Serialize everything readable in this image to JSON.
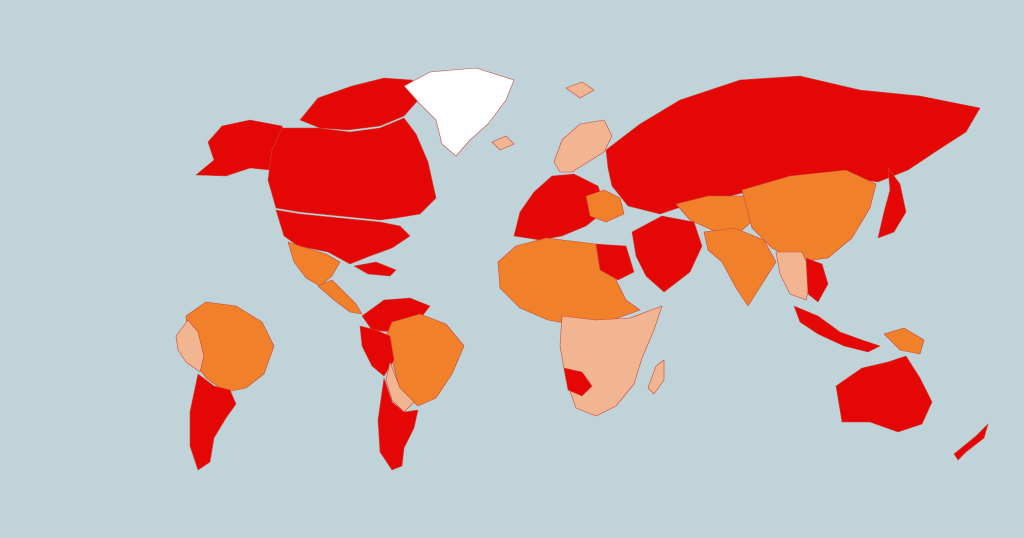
{
  "map": {
    "title": "",
    "colors": {
      "ocean": "#bfd3d8",
      "high": "#e50606",
      "medium": "#f0812a",
      "low": "#f2b592",
      "none": "#ffffff"
    },
    "regions": [
      {
        "name": "alaska",
        "level": "high"
      },
      {
        "name": "canada",
        "level": "high"
      },
      {
        "name": "canadian-arctic-islands",
        "level": "high"
      },
      {
        "name": "united-states",
        "level": "high"
      },
      {
        "name": "greenland",
        "level": "none"
      },
      {
        "name": "iceland",
        "level": "low"
      },
      {
        "name": "svalbard",
        "level": "low"
      },
      {
        "name": "mexico",
        "level": "medium"
      },
      {
        "name": "central-america",
        "level": "medium"
      },
      {
        "name": "caribbean",
        "level": "high"
      },
      {
        "name": "colombia-venezuela",
        "level": "high"
      },
      {
        "name": "peru",
        "level": "high"
      },
      {
        "name": "brazil",
        "level": "medium"
      },
      {
        "name": "bolivia-paraguay",
        "level": "low"
      },
      {
        "name": "argentina-chile",
        "level": "high"
      },
      {
        "name": "inset-south-america",
        "level": "medium"
      },
      {
        "name": "inset-andes",
        "level": "low"
      },
      {
        "name": "inset-southern-cone",
        "level": "high"
      },
      {
        "name": "scandinavia",
        "level": "low"
      },
      {
        "name": "western-europe",
        "level": "high"
      },
      {
        "name": "eastern-europe",
        "level": "medium"
      },
      {
        "name": "russia",
        "level": "high"
      },
      {
        "name": "north-africa",
        "level": "medium"
      },
      {
        "name": "egypt",
        "level": "high"
      },
      {
        "name": "middle-east",
        "level": "high"
      },
      {
        "name": "central-africa",
        "level": "low"
      },
      {
        "name": "namibia",
        "level": "high"
      },
      {
        "name": "madagascar",
        "level": "low"
      },
      {
        "name": "central-asia",
        "level": "medium"
      },
      {
        "name": "china",
        "level": "medium"
      },
      {
        "name": "india",
        "level": "medium"
      },
      {
        "name": "southeast-asia",
        "level": "low"
      },
      {
        "name": "vietnam",
        "level": "high"
      },
      {
        "name": "japan",
        "level": "high"
      },
      {
        "name": "indonesia",
        "level": "high"
      },
      {
        "name": "papua",
        "level": "medium"
      },
      {
        "name": "australia",
        "level": "high"
      },
      {
        "name": "new-zealand",
        "level": "high"
      }
    ]
  }
}
